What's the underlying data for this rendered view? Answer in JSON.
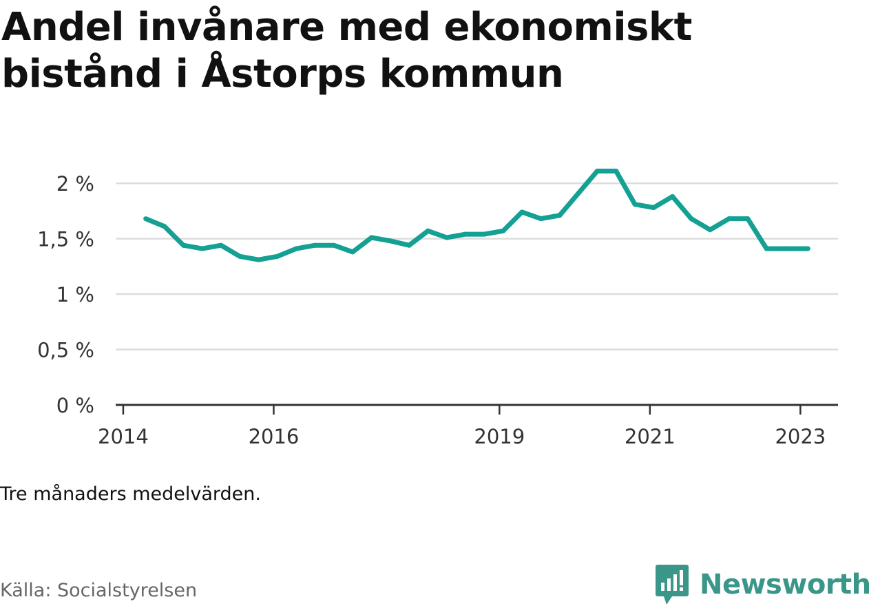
{
  "title": "Andel invånare med ekonomiskt bistånd i Åstorps kommun",
  "note": "Tre månaders medelvärden.",
  "source": "Källa: Socialstyrelsen",
  "brand": "Newsworthy",
  "colors": {
    "line": "#14a093",
    "grid": "#dddddd",
    "axis": "#333333",
    "brand": "#3a9688"
  },
  "chart_data": {
    "type": "line",
    "title": "Andel invånare med ekonomiskt bistånd i Åstorps kommun",
    "xlabel": "",
    "ylabel": "",
    "x_tick_labels": [
      "2014",
      "2016",
      "2019",
      "2021",
      "2023"
    ],
    "y_tick_labels": [
      "0 %",
      "0,5 %",
      "1 %",
      "1,5 %",
      "2 %"
    ],
    "y_ticks": [
      0,
      0.5,
      1,
      1.5,
      2
    ],
    "ylim": [
      0,
      2.1
    ],
    "x_ticks": [
      2014,
      2016,
      2019,
      2021,
      2023
    ],
    "xlim": [
      2013.9,
      2023.5
    ],
    "grid": true,
    "series": [
      {
        "x": [
          2014.3,
          2014.55,
          2014.8,
          2015.05,
          2015.3,
          2015.55,
          2015.8,
          2016.05,
          2016.3,
          2016.55,
          2016.8,
          2017.05,
          2017.3,
          2017.55,
          2017.8,
          2018.05,
          2018.3,
          2018.55,
          2018.8,
          2019.05,
          2019.3,
          2019.55,
          2019.8,
          2020.05,
          2020.3,
          2020.55,
          2020.8,
          2021.05,
          2021.3,
          2021.55,
          2021.8,
          2022.05,
          2022.3,
          2022.55,
          2022.8,
          2023.05,
          2023.1
        ],
        "values": [
          1.68,
          1.61,
          1.44,
          1.41,
          1.44,
          1.34,
          1.31,
          1.34,
          1.41,
          1.44,
          1.44,
          1.38,
          1.51,
          1.48,
          1.44,
          1.57,
          1.51,
          1.54,
          1.54,
          1.57,
          1.74,
          1.68,
          1.71,
          1.91,
          2.11,
          2.11,
          1.81,
          1.78,
          1.88,
          1.68,
          1.58,
          1.68,
          1.68,
          1.41,
          1.41,
          1.41,
          1.41
        ]
      }
    ]
  }
}
